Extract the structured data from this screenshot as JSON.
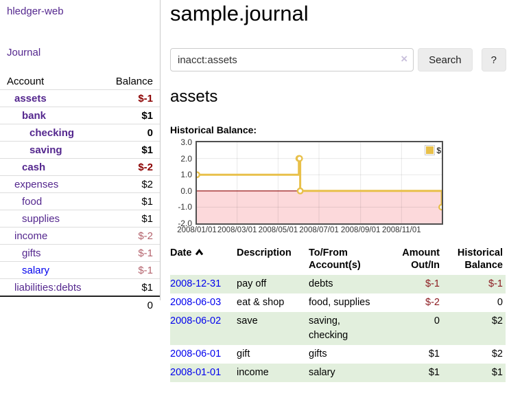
{
  "brand": "hledger-web",
  "nav": {
    "journal": "Journal"
  },
  "colors": {
    "link_purple": "#54278e",
    "link_blue": "#0000ee",
    "negative_strong": "#8b0000",
    "negative_soft": "#b4636d",
    "row_stripe_green": "#e2efdd"
  },
  "sidebar": {
    "account_header": "Account",
    "balance_header": "Balance",
    "accounts": [
      {
        "name": "assets",
        "indent": 1,
        "bold": true,
        "balance": "$-1",
        "negative": "strong",
        "link_color": "purple"
      },
      {
        "name": "bank",
        "indent": 2,
        "bold": true,
        "balance": "$1",
        "negative": "",
        "link_color": "purple"
      },
      {
        "name": "checking",
        "indent": 3,
        "bold": true,
        "balance": "0",
        "negative": "",
        "link_color": "purple"
      },
      {
        "name": "saving",
        "indent": 3,
        "bold": true,
        "balance": "$1",
        "negative": "",
        "link_color": "purple"
      },
      {
        "name": "cash",
        "indent": 2,
        "bold": true,
        "balance": "$-2",
        "negative": "strong",
        "link_color": "purple"
      },
      {
        "name": "expenses",
        "indent": 1,
        "bold": false,
        "balance": "$2",
        "negative": "",
        "link_color": "purple"
      },
      {
        "name": "food",
        "indent": 2,
        "bold": false,
        "balance": "$1",
        "negative": "",
        "link_color": "purple"
      },
      {
        "name": "supplies",
        "indent": 2,
        "bold": false,
        "balance": "$1",
        "negative": "",
        "link_color": "purple"
      },
      {
        "name": "income",
        "indent": 1,
        "bold": false,
        "balance": "$-2",
        "negative": "soft",
        "link_color": "purple"
      },
      {
        "name": "gifts",
        "indent": 2,
        "bold": false,
        "balance": "$-1",
        "negative": "soft",
        "link_color": "purple"
      },
      {
        "name": "salary",
        "indent": 2,
        "bold": false,
        "balance": "$-1",
        "negative": "soft",
        "link_color": "blue"
      },
      {
        "name": "liabilities:debts",
        "indent": 1,
        "bold": false,
        "balance": "$1",
        "negative": "",
        "link_color": "purple"
      }
    ],
    "total": "0"
  },
  "main": {
    "title": "sample.journal",
    "search": {
      "value": "inacct:assets",
      "clear": "×",
      "search_label": "Search",
      "help_label": "?"
    },
    "account_heading": "assets",
    "chart_heading": "Historical Balance:"
  },
  "chart_data": {
    "type": "line",
    "step": true,
    "title": "Historical Balance",
    "legend": [
      {
        "label": "$",
        "color": "#e8c04a"
      }
    ],
    "series": [
      {
        "name": "$",
        "points": [
          {
            "x": "2008-01-01",
            "y": 1
          },
          {
            "x": "2008-06-01",
            "y": 2
          },
          {
            "x": "2008-06-02",
            "y": 2
          },
          {
            "x": "2008-06-03",
            "y": 0
          },
          {
            "x": "2008-12-31",
            "y": -1
          }
        ]
      }
    ],
    "xrange": [
      "2008-01-01",
      "2008-12-31"
    ],
    "ylim": [
      -2,
      3
    ],
    "yticks": [
      "3.0",
      "2.0",
      "1.0",
      "0.0",
      "-1.0",
      "-2.0"
    ],
    "ytick_values": [
      3,
      2,
      1,
      0,
      -1,
      -2
    ],
    "xticks": [
      {
        "label": "2008/01/01",
        "date": "2008-01-01"
      },
      {
        "label": "2008/03/01",
        "date": "2008-03-01"
      },
      {
        "label": "2008/05/01",
        "date": "2008-05-01"
      },
      {
        "label": "2008/07/01",
        "date": "2008-07-01"
      },
      {
        "label": "2008/09/01",
        "date": "2008-09-01"
      },
      {
        "label": "2008/11/01",
        "date": "2008-11-01"
      }
    ],
    "grid": true,
    "legend_position": "top-right",
    "line_color": "#e8c04a",
    "point_fill": "#ffffff",
    "negative_region_fill": "#fcd9db",
    "zero_line_color": "#8b0000"
  },
  "register": {
    "headers": [
      {
        "label": "Date",
        "sorted": "asc"
      },
      {
        "label": "Description"
      },
      {
        "label": "To/From Account(s)"
      },
      {
        "label": "Amount Out/In",
        "align": "right"
      },
      {
        "label": "Historical Balance",
        "align": "right"
      }
    ],
    "rows": [
      {
        "date": "2008-12-31",
        "description": "pay off",
        "accounts": "debts",
        "amount": "$-1",
        "balance": "$-1"
      },
      {
        "date": "2008-06-03",
        "description": "eat & shop",
        "accounts": "food, supplies",
        "amount": "$-2",
        "balance": "0"
      },
      {
        "date": "2008-06-02",
        "description": "save",
        "accounts": "saving, checking",
        "amount": "0",
        "balance": "$2"
      },
      {
        "date": "2008-06-01",
        "description": "gift",
        "accounts": "gifts",
        "amount": "$1",
        "balance": "$2"
      },
      {
        "date": "2008-01-01",
        "description": "income",
        "accounts": "salary",
        "amount": "$1",
        "balance": "$1"
      }
    ]
  }
}
